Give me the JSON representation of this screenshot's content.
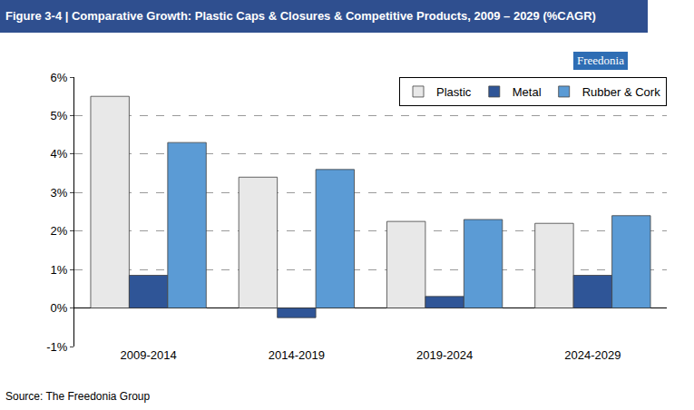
{
  "chart_data": {
    "type": "bar",
    "title": "Figure 3-4 | Comparative Growth: Plastic Caps & Closures & Competitive Products, 2009 – 2029 (%CAGR)",
    "logo": "Freedonia",
    "source": "Source: The Freedonia Group",
    "categories": [
      "2009-2014",
      "2014-2019",
      "2019-2024",
      "2024-2029"
    ],
    "series": [
      {
        "name": "Plastic",
        "color": "#e8e8e8",
        "values": [
          5.5,
          3.4,
          2.25,
          2.2
        ]
      },
      {
        "name": "Metal",
        "color": "#2f5597",
        "values": [
          0.85,
          -0.25,
          0.3,
          0.85
        ]
      },
      {
        "name": "Rubber & Cork",
        "color": "#5b9bd5",
        "values": [
          4.3,
          3.6,
          2.3,
          2.4
        ]
      }
    ],
    "ylim": [
      -1,
      6
    ],
    "yticks": [
      {
        "value": -1,
        "label": "-1%"
      },
      {
        "value": 0,
        "label": "0%"
      },
      {
        "value": 1,
        "label": "1%"
      },
      {
        "value": 2,
        "label": "2%"
      },
      {
        "value": 3,
        "label": "3%"
      },
      {
        "value": 4,
        "label": "4%"
      },
      {
        "value": 5,
        "label": "5%"
      },
      {
        "value": 6,
        "label": "6%"
      }
    ],
    "grid": true,
    "legend": "top right"
  }
}
